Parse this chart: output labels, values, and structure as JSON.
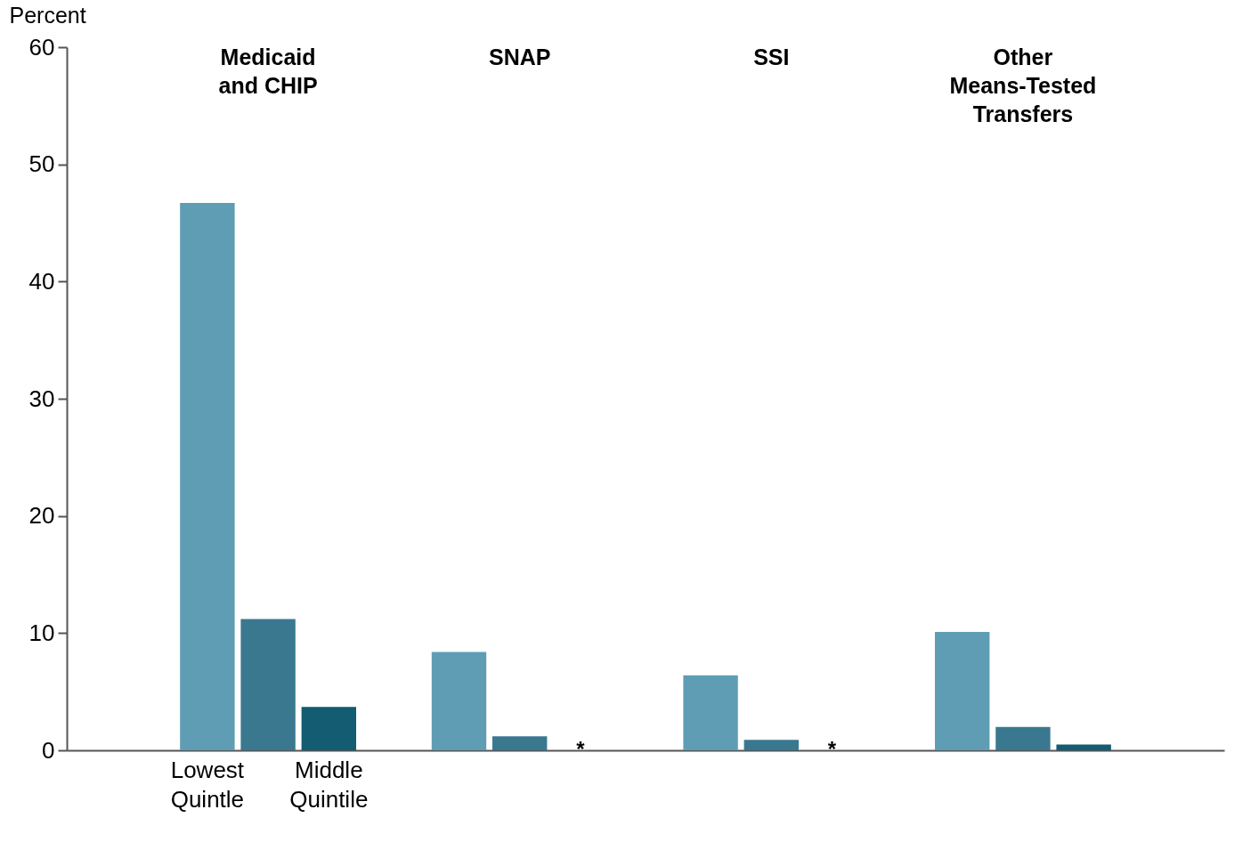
{
  "chart_data": {
    "type": "bar",
    "ylabel": "Percent",
    "categories": [
      "Medicaid\nand CHIP",
      "SNAP",
      "SSI",
      "Other\nMeans-Tested\nTransfers"
    ],
    "series": [
      {
        "name": "Lowest\nQuintle",
        "color": "#5f9db5",
        "values": [
          46.7,
          8.4,
          6.4,
          10.1
        ]
      },
      {
        "color": "#3a7890",
        "values": [
          11.2,
          1.2,
          0.9,
          2.0
        ]
      },
      {
        "name": "Middle\nQuintile",
        "color": "#135c72",
        "values": [
          3.7,
          null,
          null,
          0.5
        ],
        "value_labels": [
          null,
          "*",
          "*",
          null
        ]
      }
    ],
    "ylim": [
      0,
      60
    ],
    "yticks": [
      0,
      10,
      20,
      30,
      40,
      50,
      60
    ]
  }
}
